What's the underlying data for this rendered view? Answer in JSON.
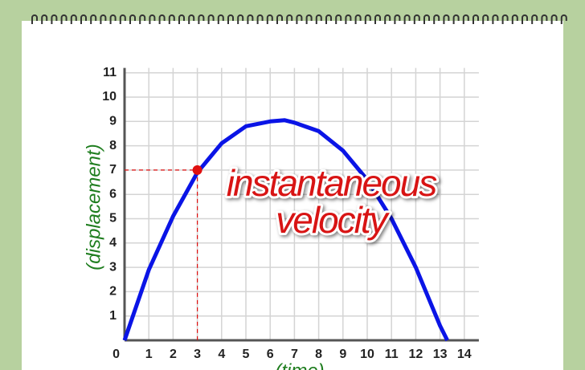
{
  "chart_data": {
    "type": "line",
    "annotation": [
      "instantaneous",
      "velocity"
    ],
    "xlabel": "(time)",
    "ylabel": "(displacement)",
    "series": [
      {
        "color": "#0a14e6",
        "x": [
          0,
          1,
          2,
          3,
          4,
          5,
          6,
          6.6,
          7,
          8,
          9,
          10,
          11,
          12,
          13,
          13.3
        ],
        "values": [
          0,
          2.9,
          5.1,
          6.9,
          8.1,
          8.8,
          9.0,
          9.05,
          8.95,
          8.6,
          7.8,
          6.6,
          5.0,
          3.0,
          0.6,
          0
        ]
      }
    ],
    "highlight": {
      "x": 3,
      "y": 7,
      "color": "#e01010"
    },
    "xlim": [
      0,
      14.6
    ],
    "ylim": [
      0,
      11.2
    ],
    "xticks": [
      0,
      1,
      2,
      3,
      4,
      5,
      6,
      7,
      8,
      9,
      10,
      11,
      12,
      13,
      14
    ],
    "yticks": [
      1,
      2,
      3,
      4,
      5,
      6,
      7,
      8,
      9,
      10,
      11
    ],
    "grid": true
  }
}
